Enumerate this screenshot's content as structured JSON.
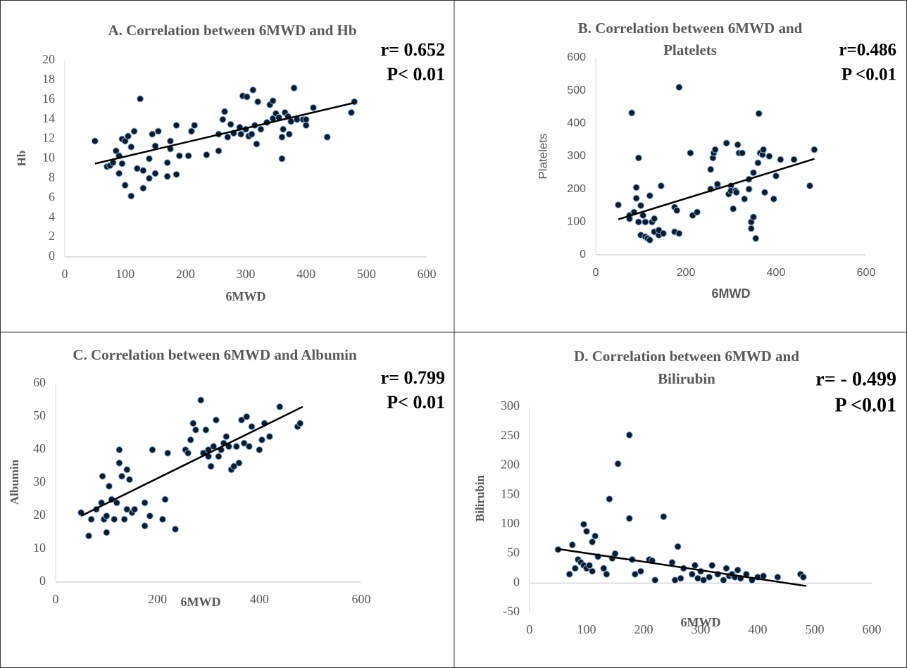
{
  "chart_data": [
    {
      "type": "scatter",
      "title": [
        "A. Correlation  between 6MWD and Hb"
      ],
      "xlabel": "6MWD",
      "ylabel": "Hb",
      "annotations": [
        "r= 0.652",
        "P< 0.01"
      ],
      "x": [
        50,
        70,
        75,
        80,
        85,
        90,
        90,
        95,
        95,
        100,
        100,
        105,
        110,
        110,
        115,
        120,
        125,
        130,
        130,
        140,
        140,
        145,
        150,
        150,
        155,
        170,
        170,
        175,
        175,
        185,
        185,
        190,
        205,
        210,
        215,
        235,
        255,
        255,
        262,
        265,
        270,
        275,
        280,
        290,
        292,
        295,
        300,
        302,
        305,
        310,
        312,
        315,
        318,
        320,
        325,
        335,
        340,
        345,
        345,
        350,
        355,
        360,
        360,
        362,
        365,
        370,
        372,
        375,
        380,
        385,
        395,
        400,
        400,
        412,
        435,
        475,
        480
      ],
      "values": [
        11.8,
        9.2,
        9.3,
        9.6,
        10.8,
        8.5,
        10.3,
        12,
        9.5,
        7.3,
        11.8,
        12.3,
        11.2,
        6.2,
        12.8,
        9,
        16.1,
        8.8,
        7,
        8,
        10,
        12.5,
        11.3,
        8.5,
        12.8,
        8.2,
        9.6,
        11.8,
        11,
        8.4,
        13.4,
        10.3,
        10.3,
        12.8,
        13.4,
        10.4,
        10.8,
        12.5,
        14,
        14.8,
        12.2,
        13.5,
        12.6,
        13.2,
        12.5,
        16.4,
        13,
        16.3,
        12.3,
        12.5,
        17,
        13.4,
        11.5,
        15.8,
        13,
        13.7,
        15.5,
        14.1,
        15.9,
        14.6,
        14.2,
        10,
        12.2,
        13,
        14.7,
        14.3,
        12.5,
        13.8,
        17.2,
        14,
        14,
        13.4,
        14,
        15.2,
        12.2,
        14.7,
        15.8
      ],
      "trendline": {
        "x": [
          50,
          480
        ],
        "y": [
          9.5,
          15.7
        ]
      },
      "xlim": [
        0,
        600
      ],
      "xticks": [
        0,
        100,
        200,
        300,
        400,
        500,
        600
      ],
      "ylim": [
        0,
        20
      ],
      "yticks": [
        0,
        2,
        4,
        6,
        8,
        10,
        12,
        14,
        16,
        18,
        20
      ],
      "color": "#0d1b2a"
    },
    {
      "type": "scatter",
      "title": [
        "B. Correlation between 6MWD and",
        "Platelets"
      ],
      "xlabel": "6MWD",
      "ylabel": "Platelets",
      "annotations": [
        "r=0.486",
        "P <0.01"
      ],
      "x": [
        50,
        75,
        75,
        80,
        85,
        90,
        90,
        95,
        95,
        100,
        100,
        105,
        110,
        110,
        115,
        120,
        120,
        125,
        130,
        130,
        140,
        140,
        145,
        150,
        175,
        175,
        180,
        185,
        185,
        210,
        215,
        225,
        255,
        255,
        260,
        262,
        265,
        270,
        270,
        290,
        295,
        300,
        300,
        305,
        310,
        312,
        315,
        318,
        325,
        330,
        340,
        340,
        345,
        345,
        350,
        350,
        355,
        360,
        362,
        365,
        370,
        372,
        375,
        385,
        395,
        400,
        410,
        440,
        475,
        485
      ],
      "values": [
        152,
        120,
        110,
        432,
        130,
        172,
        205,
        295,
        100,
        150,
        60,
        120,
        100,
        55,
        50,
        45,
        180,
        100,
        70,
        110,
        60,
        75,
        210,
        65,
        145,
        70,
        135,
        510,
        65,
        310,
        120,
        130,
        200,
        260,
        295,
        310,
        320,
        210,
        215,
        340,
        185,
        210,
        195,
        140,
        195,
        190,
        335,
        310,
        310,
        170,
        200,
        230,
        100,
        80,
        250,
        115,
        50,
        280,
        430,
        310,
        305,
        320,
        190,
        300,
        170,
        240,
        290,
        290,
        210,
        320
      ],
      "trendline": {
        "x": [
          50,
          485
        ],
        "y": [
          108,
          292
        ]
      },
      "xlim": [
        0,
        600
      ],
      "xticks": [
        0,
        200,
        400,
        600
      ],
      "ylim": [
        0,
        600
      ],
      "yticks": [
        0,
        100,
        200,
        300,
        400,
        500,
        600
      ],
      "color": "#0d1b2a"
    },
    {
      "type": "scatter",
      "title": [
        "C. Correlation between 6MWD and Albumin"
      ],
      "xlabel": "6MWD",
      "ylabel": "Albumin",
      "annotations": [
        "r= 0.799",
        "P< 0.01"
      ],
      "x": [
        50,
        65,
        70,
        80,
        90,
        92,
        95,
        100,
        100,
        105,
        110,
        115,
        120,
        125,
        125,
        130,
        135,
        140,
        140,
        145,
        150,
        155,
        175,
        175,
        185,
        190,
        210,
        215,
        220,
        235,
        255,
        260,
        265,
        270,
        275,
        285,
        290,
        295,
        300,
        300,
        305,
        310,
        315,
        320,
        325,
        330,
        335,
        340,
        345,
        350,
        355,
        360,
        365,
        370,
        375,
        380,
        385,
        400,
        405,
        410,
        420,
        440,
        475,
        480
      ],
      "values": [
        21,
        14,
        19,
        22,
        24,
        32,
        19,
        15,
        20,
        29,
        25,
        19,
        24,
        36,
        40,
        32,
        19,
        22,
        34,
        31,
        21,
        22,
        17,
        24,
        20,
        40,
        19,
        25,
        39,
        16,
        40,
        39,
        43,
        48,
        46,
        55,
        39,
        46,
        38,
        40,
        35,
        41,
        49,
        38,
        40,
        42,
        44,
        41,
        34,
        35,
        41,
        36,
        49,
        42,
        50,
        41,
        47,
        40,
        43,
        48,
        44,
        53,
        47,
        48
      ],
      "trendline": {
        "x": [
          50,
          485
        ],
        "y": [
          20,
          53
        ]
      },
      "xlim": [
        0,
        600
      ],
      "xticks": [
        0,
        200,
        400,
        600
      ],
      "ylim": [
        0,
        60
      ],
      "yticks": [
        0,
        10,
        20,
        30,
        40,
        50,
        60
      ],
      "color": "#0d1b2a"
    },
    {
      "type": "scatter",
      "title": [
        "D. Correlation between 6MWD and",
        "Bilirubin"
      ],
      "xlabel": "6MWD",
      "ylabel": "Bilirubin",
      "annotations": [
        "r= - 0.499",
        "P <0.01"
      ],
      "x": [
        50,
        70,
        75,
        80,
        85,
        90,
        95,
        95,
        100,
        100,
        105,
        110,
        110,
        115,
        120,
        130,
        135,
        140,
        145,
        150,
        155,
        175,
        175,
        180,
        185,
        195,
        210,
        215,
        220,
        235,
        250,
        255,
        260,
        265,
        270,
        285,
        290,
        295,
        300,
        305,
        315,
        320,
        330,
        340,
        345,
        350,
        355,
        360,
        365,
        370,
        380,
        390,
        400,
        410,
        435,
        475,
        480
      ],
      "values": [
        57,
        15,
        65,
        25,
        40,
        35,
        100,
        30,
        25,
        88,
        30,
        70,
        20,
        80,
        45,
        25,
        15,
        143,
        42,
        50,
        203,
        252,
        110,
        40,
        15,
        20,
        40,
        38,
        5,
        113,
        35,
        5,
        62,
        8,
        25,
        15,
        30,
        8,
        20,
        5,
        10,
        30,
        15,
        5,
        25,
        12,
        15,
        10,
        22,
        8,
        15,
        5,
        10,
        12,
        10,
        15,
        10
      ],
      "trendline": {
        "x": [
          50,
          485
        ],
        "y": [
          58,
          -5
        ]
      },
      "xlim": [
        0,
        600
      ],
      "xticks": [
        0,
        100,
        200,
        300,
        400,
        500,
        600
      ],
      "ylim": [
        -50,
        300
      ],
      "yticks": [
        -50,
        0,
        50,
        100,
        150,
        200,
        250,
        300
      ],
      "color": "#0d1b2a"
    }
  ]
}
